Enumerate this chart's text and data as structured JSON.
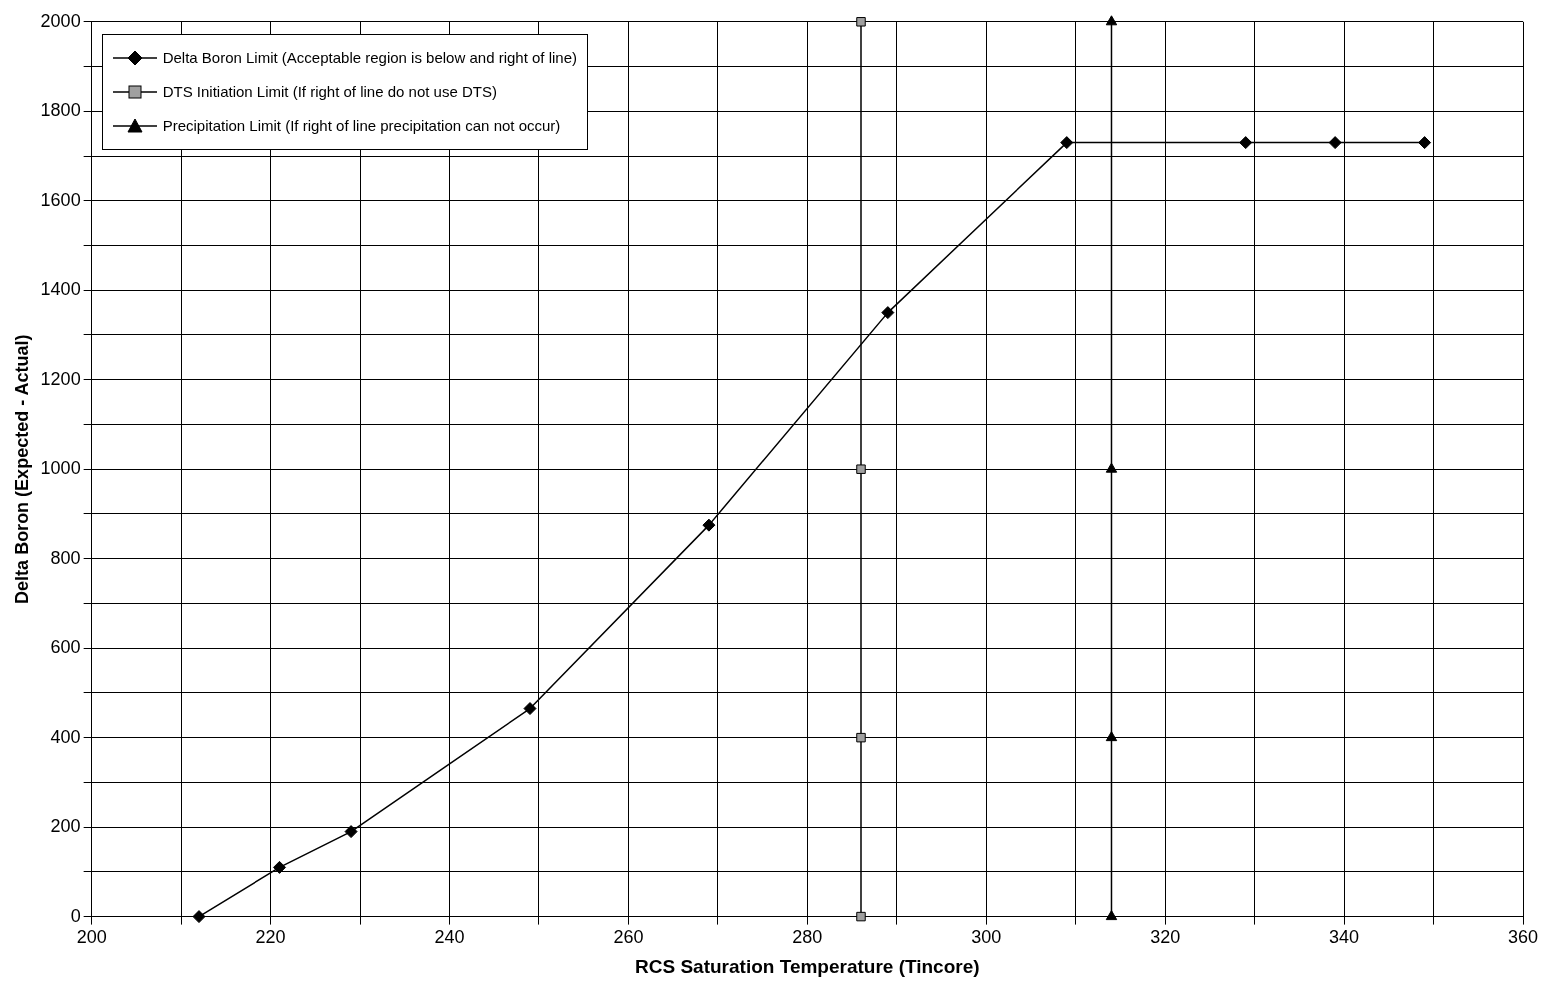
{
  "chart_data": {
    "type": "line",
    "xlabel": "RCS Saturation Temperature (Tincore)",
    "ylabel": "Delta Boron (Expected - Actual)",
    "xlim": [
      200,
      360
    ],
    "xticks": [
      200,
      {
        "value": 210,
        "label": null
      },
      220,
      {
        "value": 230,
        "label": null
      },
      240,
      {
        "value": 250,
        "label": null
      },
      260,
      {
        "value": 270,
        "label": null
      },
      280,
      {
        "value": 290,
        "label": null
      },
      300,
      {
        "value": 310,
        "label": null
      },
      320,
      {
        "value": 330,
        "label": null
      },
      340,
      {
        "value": 350,
        "label": null
      },
      360
    ],
    "ylim": [
      0,
      2000
    ],
    "yticks": [
      0,
      {
        "value": 100,
        "label": null
      },
      200,
      {
        "value": 300,
        "label": null
      },
      400,
      {
        "value": 500,
        "label": null
      },
      600,
      {
        "value": 700,
        "label": null
      },
      800,
      {
        "value": 900,
        "label": null
      },
      1000,
      {
        "value": 1100,
        "label": null
      },
      1200,
      {
        "value": 1300,
        "label": null
      },
      1400,
      {
        "value": 1500,
        "label": null
      },
      1600,
      {
        "value": 1700,
        "label": null
      },
      1800,
      {
        "value": 1900,
        "label": null
      },
      2000
    ],
    "grid": true,
    "legend": "top left",
    "line_style": "solid",
    "series": [
      {
        "name": "Delta Boron Limit (Acceptable region is below and right of line)",
        "color": "#000000",
        "marker": "diamond",
        "x": [
          212,
          221,
          229,
          249,
          269,
          289,
          309,
          329,
          339,
          349
        ],
        "values": [
          0,
          110,
          190,
          465,
          875,
          1350,
          1730,
          1730,
          1730,
          1730
        ]
      },
      {
        "name": "DTS Initiation Limit (If right of line do not use DTS)",
        "color": "#a0a0a0",
        "marker": "square",
        "x": [
          286,
          286,
          286,
          286
        ],
        "values": [
          0,
          400,
          1000,
          2000
        ]
      },
      {
        "name": "Precipitation Limit (If right of line precipitation can not occur)",
        "color": "#000000",
        "marker": "triangle",
        "x": [
          314,
          314,
          314,
          314
        ],
        "values": [
          0,
          400,
          1000,
          2000
        ]
      }
    ]
  }
}
